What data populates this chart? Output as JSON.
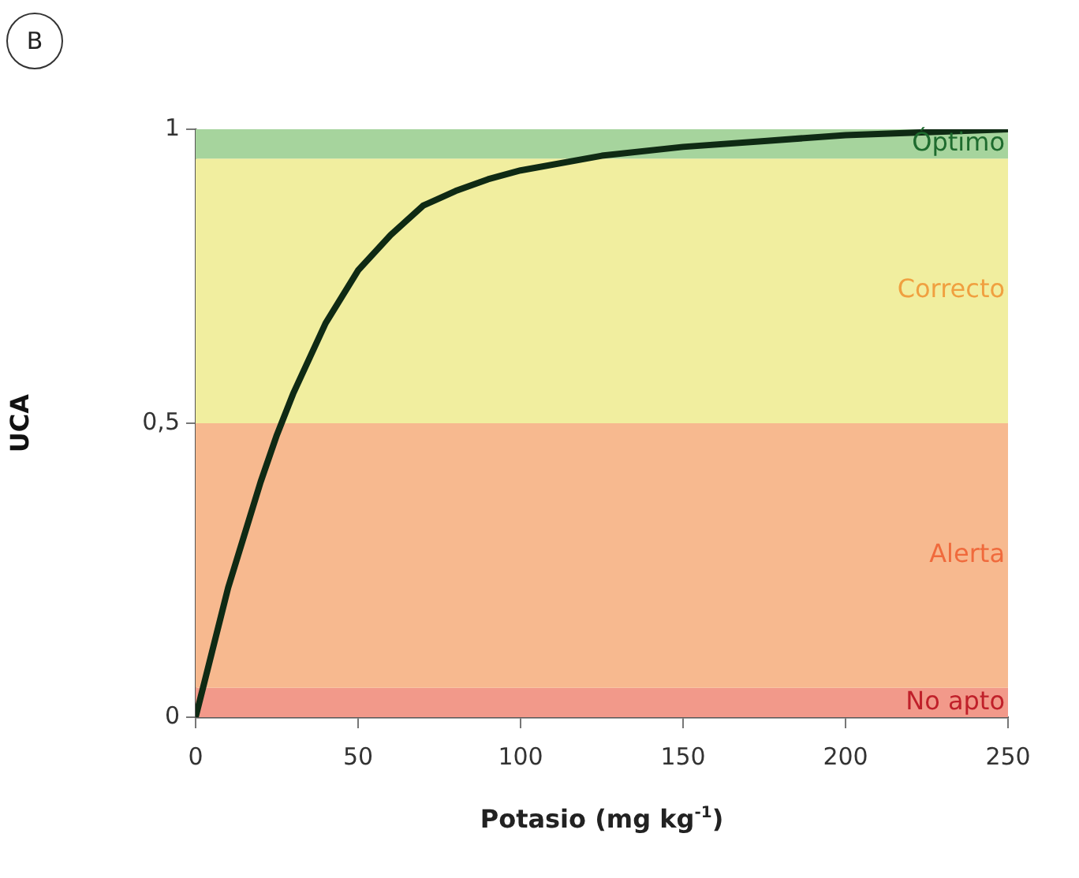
{
  "chart_data": {
    "type": "line",
    "xlabel": "Potasio (mg kg$^{-1}$)",
    "ylabel": "UCA",
    "annotations": [
      "B"
    ],
    "x": [
      0,
      5,
      10,
      15,
      20,
      25,
      30,
      40,
      50,
      60,
      70,
      80,
      90,
      100,
      125,
      150,
      175,
      200,
      225,
      250
    ],
    "series": [
      {
        "color": "#0f2a14",
        "values": [
          0,
          0.11,
          0.22,
          0.31,
          0.4,
          0.48,
          0.55,
          0.67,
          0.76,
          0.82,
          0.87,
          0.895,
          0.915,
          0.93,
          0.955,
          0.97,
          0.98,
          0.99,
          0.995,
          1
        ]
      }
    ],
    "xlim": [
      0,
      250
    ],
    "xticks": [
      0,
      50,
      100,
      150,
      200,
      250
    ],
    "ylim": [
      0,
      1
    ],
    "yticks": [
      0,
      {
        "value": 0.5,
        "label": "0,5"
      },
      1
    ],
    "bands": [
      {
        "axis": "y",
        "from": 0,
        "to": 0.05,
        "label": "No apto",
        "color": "#f2998a"
      },
      {
        "axis": "y",
        "from": 0.05,
        "to": 0.5,
        "label": "Alerta",
        "color": "#f7b98f"
      },
      {
        "axis": "y",
        "from": 0.5,
        "to": 0.95,
        "label": "Correcto",
        "color": "#f1ee9f"
      },
      {
        "axis": "y",
        "from": 0.95,
        "to": 1,
        "label": "Óptimo",
        "color": "#a6d49d"
      }
    ],
    "grid": false,
    "legend": false,
    "marker": "none",
    "line_style": "solid"
  }
}
